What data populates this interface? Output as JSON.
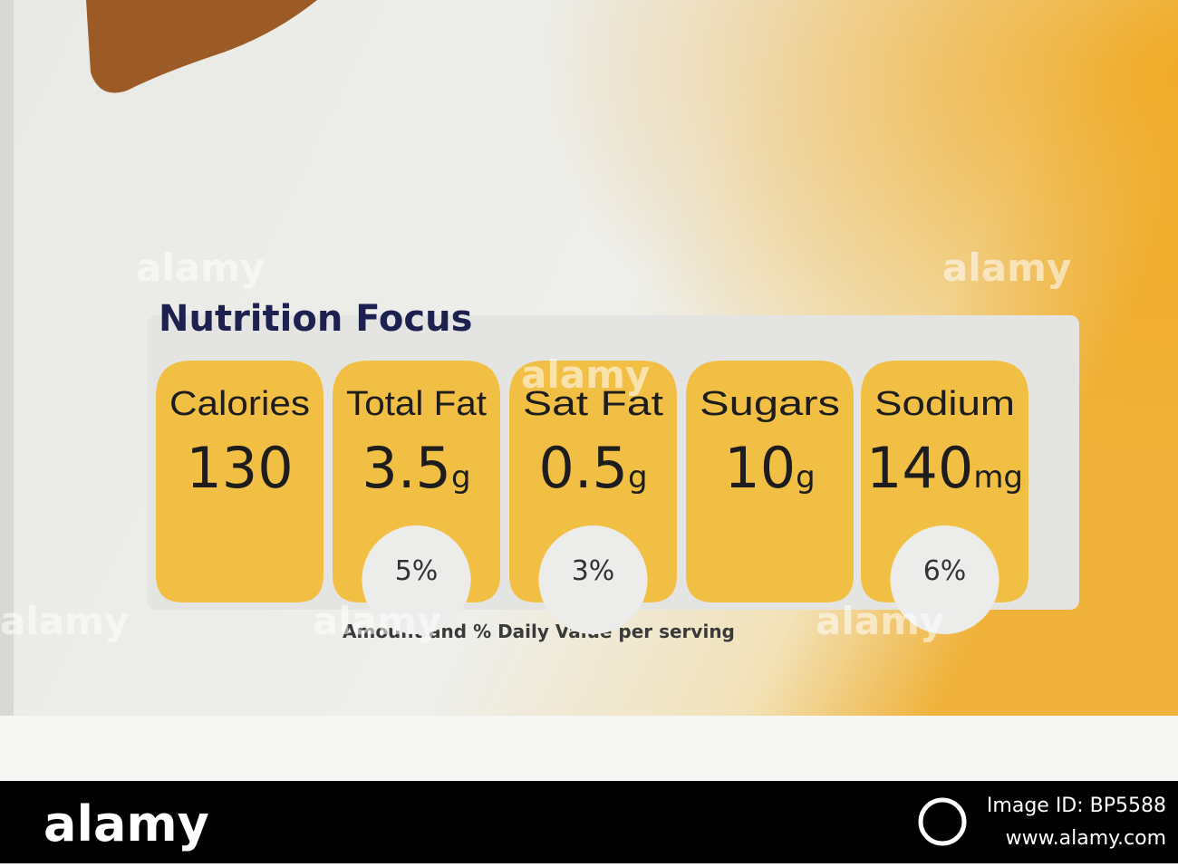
{
  "header": {
    "title": "Nutrition Focus"
  },
  "badges": [
    {
      "label": "Calories",
      "amount": "130"
    },
    {
      "label": "Total Fat",
      "amount": "3.5",
      "unit": "g",
      "daily_value": "5%"
    },
    {
      "label": "Sat Fat",
      "amount": "0.5",
      "unit": "g",
      "daily_value": "3%"
    },
    {
      "label": "Sugars",
      "amount": "10",
      "unit": "g"
    },
    {
      "label": "Sodium",
      "amount": "140",
      "unit": "mg",
      "daily_value": "6%"
    }
  ],
  "footer": "Amount and % Daily Value per serving",
  "watermarks": [
    "alamy",
    "alamy",
    "alamy",
    "alamy",
    "alamy",
    "alamy"
  ],
  "credit_bar": {
    "brand": "alamy",
    "image_id": "Image ID: BP5588",
    "url": "www.alamy.com"
  }
}
